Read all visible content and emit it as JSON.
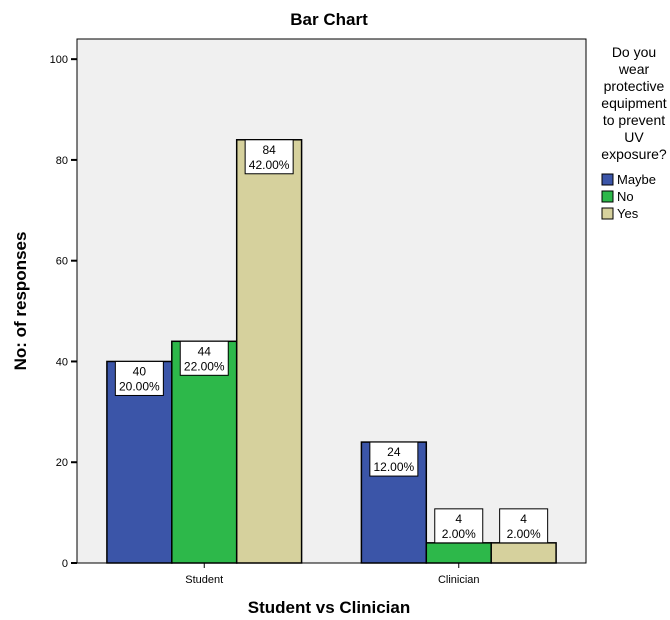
{
  "chart_data": {
    "type": "bar",
    "title": "Bar Chart",
    "xlabel": "Student vs Clinician",
    "ylabel": "No: of responses",
    "categories": [
      "Student",
      "Clinician"
    ],
    "ylim": [
      0,
      104
    ],
    "yticks": [
      0,
      20,
      40,
      60,
      80,
      100
    ],
    "grid": false,
    "legend_position": "right",
    "legend_title": [
      "Do you",
      "wear",
      "protective",
      "equipment",
      "to prevent",
      "UV",
      "exposure?"
    ],
    "series": [
      {
        "name": "Maybe",
        "color": "#3b55a8",
        "values": [
          40,
          24
        ],
        "labels": [
          "20.00%",
          "12.00%"
        ]
      },
      {
        "name": "No",
        "color": "#2db84a",
        "values": [
          44,
          4
        ],
        "labels": [
          "22.00%",
          "2.00%"
        ]
      },
      {
        "name": "Yes",
        "color": "#d6d19d",
        "values": [
          84,
          4
        ],
        "labels": [
          "42.00%",
          "2.00%"
        ]
      }
    ]
  }
}
